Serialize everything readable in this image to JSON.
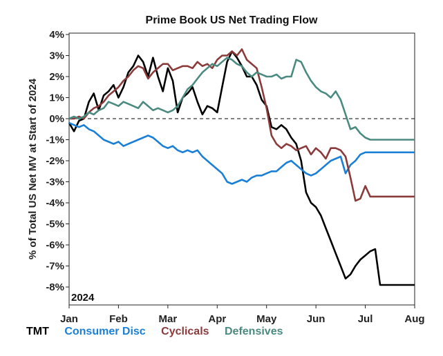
{
  "chart_data": {
    "type": "line",
    "title": "Prime Book US Net Trading Flow",
    "ylabel": "% of Total US Net MV at Start of 2024",
    "xlabel": "",
    "year_label": "2024",
    "x_ticks": [
      "Jan",
      "Feb",
      "Mar",
      "Apr",
      "May",
      "Jun",
      "Jul",
      "Aug"
    ],
    "y_ticks": [
      "4%",
      "3%",
      "2%",
      "1%",
      "0%",
      "-1%",
      "-2%",
      "-3%",
      "-4%",
      "-5%",
      "-6%",
      "-7%",
      "-8%"
    ],
    "ylim": [
      -8.5,
      4
    ],
    "xlim": [
      0,
      7
    ],
    "zero_line": "dashed",
    "series": [
      {
        "name": "TMT",
        "color": "#000000",
        "x": [
          0,
          0.1,
          0.2,
          0.3,
          0.4,
          0.5,
          0.6,
          0.7,
          0.8,
          0.9,
          1.0,
          1.1,
          1.2,
          1.3,
          1.4,
          1.5,
          1.6,
          1.7,
          1.8,
          1.9,
          2.0,
          2.1,
          2.2,
          2.3,
          2.4,
          2.5,
          2.6,
          2.7,
          2.8,
          2.9,
          3.0,
          3.1,
          3.2,
          3.3,
          3.4,
          3.5,
          3.6,
          3.7,
          3.8,
          3.9,
          4.0,
          4.1,
          4.2,
          4.3,
          4.4,
          4.5,
          4.6,
          4.7,
          4.8,
          4.9,
          5.0,
          5.1,
          5.2,
          5.3,
          5.4,
          5.5,
          5.6,
          5.7,
          5.8,
          5.9,
          6.0,
          6.1,
          6.2,
          6.3,
          6.4,
          6.5,
          6.6,
          6.7,
          6.8,
          6.9,
          7.0
        ],
        "values": [
          -0.2,
          -0.6,
          -0.1,
          0.0,
          0.8,
          1.2,
          0.4,
          1.1,
          1.3,
          1.6,
          1.0,
          1.5,
          2.2,
          2.5,
          3.0,
          2.7,
          2.0,
          2.9,
          2.0,
          1.3,
          2.4,
          1.8,
          0.3,
          1.0,
          1.2,
          1.5,
          0.8,
          0.2,
          0.6,
          0.5,
          0.3,
          1.5,
          2.7,
          3.2,
          2.9,
          2.5,
          2.0,
          2.0,
          1.6,
          0.9,
          0.6,
          -0.4,
          -0.5,
          -0.3,
          -0.5,
          -0.9,
          -1.2,
          -2.0,
          -3.5,
          -4.0,
          -4.2,
          -4.6,
          -5.2,
          -5.8,
          -6.4,
          -7.0,
          -7.6,
          -7.4,
          -7.0,
          -6.7,
          -6.5,
          -6.3,
          -6.2,
          -7.9,
          -7.9,
          -7.9,
          -7.9,
          -7.9,
          -7.9,
          -7.9,
          -7.9
        ]
      },
      {
        "name": "Consumer Disc",
        "color": "#1a7fd6",
        "x": [
          0,
          0.1,
          0.2,
          0.3,
          0.4,
          0.5,
          0.6,
          0.7,
          0.8,
          0.9,
          1.0,
          1.1,
          1.2,
          1.3,
          1.4,
          1.5,
          1.6,
          1.7,
          1.8,
          1.9,
          2.0,
          2.1,
          2.2,
          2.3,
          2.4,
          2.5,
          2.6,
          2.7,
          2.8,
          2.9,
          3.0,
          3.1,
          3.2,
          3.3,
          3.4,
          3.5,
          3.6,
          3.7,
          3.8,
          3.9,
          4.0,
          4.1,
          4.2,
          4.3,
          4.4,
          4.5,
          4.6,
          4.7,
          4.8,
          4.9,
          5.0,
          5.1,
          5.2,
          5.3,
          5.4,
          5.5,
          5.6,
          5.7,
          5.8,
          5.9,
          6.0,
          6.1,
          6.2,
          6.3,
          6.4,
          6.5,
          6.6,
          6.7,
          6.8,
          6.9,
          7.0
        ],
        "values": [
          -0.2,
          -0.3,
          -0.4,
          -0.3,
          -0.5,
          -0.6,
          -0.8,
          -1.0,
          -1.1,
          -1.2,
          -1.1,
          -1.3,
          -1.2,
          -1.1,
          -1.0,
          -0.9,
          -0.8,
          -0.9,
          -1.1,
          -1.3,
          -1.4,
          -1.3,
          -1.5,
          -1.6,
          -1.5,
          -1.6,
          -1.5,
          -1.8,
          -2.0,
          -2.2,
          -2.4,
          -2.6,
          -3.0,
          -3.1,
          -3.0,
          -2.9,
          -3.0,
          -2.8,
          -2.7,
          -2.7,
          -2.6,
          -2.5,
          -2.5,
          -2.3,
          -2.1,
          -2.0,
          -2.2,
          -2.4,
          -2.6,
          -2.7,
          -2.6,
          -2.4,
          -2.2,
          -2.0,
          -1.9,
          -1.8,
          -2.6,
          -2.2,
          -2.0,
          -1.7,
          -1.6,
          -1.6,
          -1.6,
          -1.6,
          -1.6,
          -1.6,
          -1.6,
          -1.6,
          -1.6,
          -1.6,
          -1.6
        ]
      },
      {
        "name": "Cyclicals",
        "color": "#8b3a3a",
        "x": [
          0,
          0.1,
          0.2,
          0.3,
          0.4,
          0.5,
          0.6,
          0.7,
          0.8,
          0.9,
          1.0,
          1.1,
          1.2,
          1.3,
          1.4,
          1.5,
          1.6,
          1.7,
          1.8,
          1.9,
          2.0,
          2.1,
          2.2,
          2.3,
          2.4,
          2.5,
          2.6,
          2.7,
          2.8,
          2.9,
          3.0,
          3.1,
          3.2,
          3.3,
          3.4,
          3.5,
          3.6,
          3.7,
          3.8,
          3.9,
          4.0,
          4.1,
          4.2,
          4.3,
          4.4,
          4.5,
          4.6,
          4.7,
          4.8,
          4.9,
          5.0,
          5.1,
          5.2,
          5.3,
          5.4,
          5.5,
          5.6,
          5.7,
          5.8,
          5.9,
          6.0,
          6.1,
          6.2,
          6.3,
          6.4,
          6.5,
          6.6,
          6.7,
          6.8,
          6.9,
          7.0
        ],
        "values": [
          0.0,
          0.0,
          0.1,
          0.0,
          0.3,
          0.5,
          0.6,
          0.8,
          1.1,
          1.3,
          1.5,
          1.8,
          2.0,
          2.3,
          2.5,
          2.4,
          1.9,
          2.2,
          2.4,
          2.6,
          2.6,
          2.3,
          2.4,
          2.5,
          2.5,
          2.4,
          2.7,
          2.5,
          2.6,
          2.4,
          2.8,
          3.0,
          3.0,
          3.2,
          3.0,
          3.3,
          2.8,
          2.6,
          2.4,
          1.5,
          0.5,
          -0.8,
          -1.2,
          -1.4,
          -1.2,
          -1.3,
          -1.5,
          -1.4,
          -1.3,
          -1.7,
          -1.4,
          -1.6,
          -1.9,
          -1.4,
          -1.4,
          -1.5,
          -1.8,
          -2.8,
          -3.9,
          -3.8,
          -3.2,
          -3.7,
          -3.7,
          -3.7,
          -3.7,
          -3.7,
          -3.7,
          -3.7,
          -3.7,
          -3.7,
          -3.7
        ]
      },
      {
        "name": "Defensives",
        "color": "#4a8a80",
        "x": [
          0,
          0.1,
          0.2,
          0.3,
          0.4,
          0.5,
          0.6,
          0.7,
          0.8,
          0.9,
          1.0,
          1.1,
          1.2,
          1.3,
          1.4,
          1.5,
          1.6,
          1.7,
          1.8,
          1.9,
          2.0,
          2.1,
          2.2,
          2.3,
          2.4,
          2.5,
          2.6,
          2.7,
          2.8,
          2.9,
          3.0,
          3.1,
          3.2,
          3.3,
          3.4,
          3.5,
          3.6,
          3.7,
          3.8,
          3.9,
          4.0,
          4.1,
          4.2,
          4.3,
          4.4,
          4.5,
          4.6,
          4.7,
          4.8,
          4.9,
          5.0,
          5.1,
          5.2,
          5.3,
          5.4,
          5.5,
          5.6,
          5.7,
          5.8,
          5.9,
          6.0,
          6.1,
          6.2,
          6.3,
          6.4,
          6.5,
          6.6,
          6.7,
          6.8,
          6.9,
          7.0
        ],
        "values": [
          0.0,
          0.1,
          0.0,
          0.1,
          0.3,
          0.2,
          0.4,
          0.5,
          0.8,
          0.7,
          0.6,
          0.8,
          0.7,
          0.6,
          0.5,
          0.8,
          0.6,
          0.4,
          0.5,
          0.4,
          0.3,
          0.4,
          0.6,
          1.0,
          1.4,
          1.6,
          1.9,
          2.2,
          2.4,
          2.6,
          2.5,
          2.7,
          2.9,
          2.8,
          2.6,
          2.5,
          2.2,
          2.0,
          2.2,
          2.1,
          2.0,
          2.0,
          2.1,
          1.9,
          2.0,
          2.0,
          2.8,
          2.7,
          2.2,
          1.8,
          1.5,
          1.3,
          1.2,
          1.0,
          1.3,
          0.9,
          0.2,
          -0.5,
          -0.4,
          -0.7,
          -0.9,
          -1.0,
          -1.0,
          -1.0,
          -1.0,
          -1.0,
          -1.0,
          -1.0,
          -1.0,
          -1.0,
          -1.0
        ]
      }
    ]
  }
}
